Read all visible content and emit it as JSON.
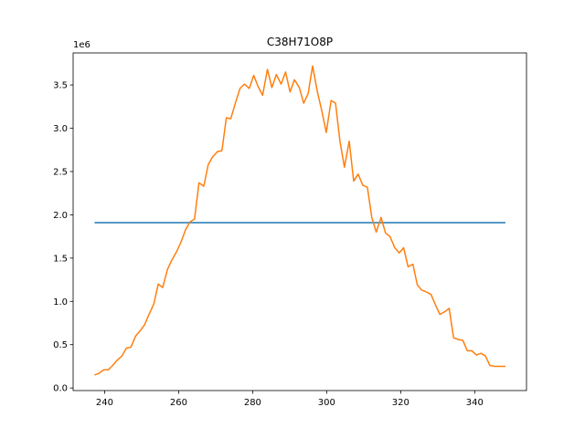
{
  "chart_data": {
    "type": "line",
    "title": "C38H71O8P",
    "xlabel": "",
    "ylabel": "",
    "y_scale_label": "1e6",
    "xlim": [
      231.5,
      354
    ],
    "ylim": [
      -0.03,
      3.87
    ],
    "x_ticks": [
      240,
      260,
      280,
      300,
      320,
      340
    ],
    "y_ticks": [
      0.0,
      0.5,
      1.0,
      1.5,
      2.0,
      2.5,
      3.0,
      3.5
    ],
    "x_tick_labels": [
      "240",
      "260",
      "280",
      "300",
      "320",
      "340"
    ],
    "y_tick_labels": [
      "0.0",
      "0.5",
      "1.0",
      "1.5",
      "2.0",
      "2.5",
      "3.0",
      "3.5"
    ],
    "grid": false,
    "series": [
      {
        "color": "#1f77b4",
        "x": [
          237.3,
          348.3
        ],
        "y": [
          1.91,
          1.91
        ]
      },
      {
        "color": "#ff7f0e",
        "x": [
          237.3,
          238.5,
          239.8,
          241.0,
          242.2,
          243.4,
          244.7,
          245.9,
          247.1,
          248.4,
          249.6,
          250.8,
          252.0,
          253.3,
          254.5,
          255.7,
          257.0,
          258.2,
          259.4,
          260.6,
          261.9,
          263.1,
          264.3,
          265.5,
          266.8,
          268.0,
          269.2,
          270.5,
          271.7,
          272.9,
          274.1,
          275.4,
          276.6,
          277.8,
          279.1,
          280.3,
          281.5,
          282.7,
          284.0,
          285.2,
          286.4,
          287.7,
          288.9,
          290.1,
          291.3,
          292.6,
          293.8,
          295.0,
          296.2,
          297.5,
          298.7,
          299.9,
          301.2,
          302.4,
          303.6,
          304.8,
          306.1,
          307.3,
          308.5,
          309.8,
          311.0,
          312.2,
          313.4,
          314.7,
          315.9,
          317.1,
          318.4,
          319.6,
          320.8,
          322.0,
          323.3,
          324.5,
          325.7,
          326.9,
          328.2,
          329.4,
          330.6,
          331.9,
          333.1,
          334.3,
          335.5,
          336.8,
          338.0,
          339.2,
          340.5,
          341.7,
          342.9,
          344.1,
          345.4,
          346.6,
          347.8,
          348.3
        ],
        "y": [
          0.15,
          0.17,
          0.21,
          0.21,
          0.26,
          0.32,
          0.37,
          0.46,
          0.47,
          0.6,
          0.66,
          0.73,
          0.85,
          0.97,
          1.2,
          1.16,
          1.37,
          1.48,
          1.57,
          1.68,
          1.83,
          1.92,
          1.95,
          2.37,
          2.33,
          2.58,
          2.67,
          2.73,
          2.74,
          3.12,
          3.11,
          3.3,
          3.46,
          3.51,
          3.46,
          3.61,
          3.48,
          3.38,
          3.68,
          3.47,
          3.62,
          3.51,
          3.65,
          3.42,
          3.56,
          3.47,
          3.29,
          3.4,
          3.72,
          3.42,
          3.2,
          2.95,
          3.32,
          3.29,
          2.85,
          2.55,
          2.85,
          2.39,
          2.47,
          2.34,
          2.32,
          1.97,
          1.8,
          1.97,
          1.79,
          1.75,
          1.62,
          1.56,
          1.62,
          1.4,
          1.43,
          1.19,
          1.13,
          1.11,
          1.08,
          0.96,
          0.85,
          0.88,
          0.92,
          0.58,
          0.56,
          0.55,
          0.43,
          0.43,
          0.38,
          0.4,
          0.37,
          0.26,
          0.25,
          0.25,
          0.25,
          0.25
        ]
      }
    ]
  }
}
